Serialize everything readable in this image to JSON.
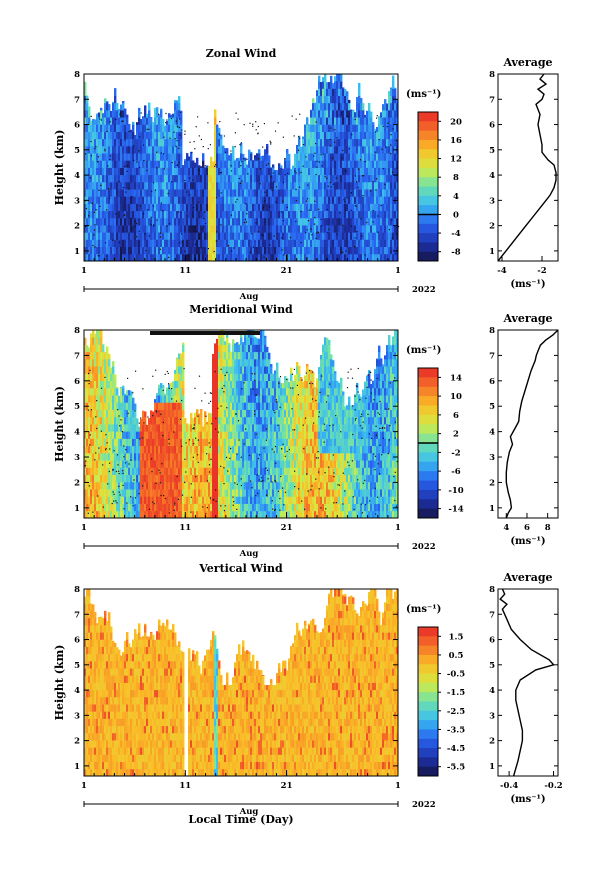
{
  "figure": {
    "xlabel": "Local Time (Day)",
    "month_label": "Aug",
    "year_label": "2022",
    "ylabel": "Height (km)",
    "avg_title": "Average",
    "cb_unit": "(ms⁻¹)",
    "avg_unit": "(ms⁻¹)"
  },
  "chart_data": [
    {
      "type": "heatmap",
      "title": "Zonal Wind",
      "x_ticks": [
        "1",
        "11",
        "21",
        "1"
      ],
      "x_range_days": [
        1,
        32
      ],
      "ylim": [
        0.6,
        8
      ],
      "y_ticks": [
        1,
        2,
        3,
        4,
        5,
        6,
        7,
        8
      ],
      "colorbar": {
        "ticks": [
          "20",
          "16",
          "12",
          "8",
          "4",
          "0",
          "-4",
          "-8"
        ],
        "range": [
          -10,
          22
        ],
        "contour_level": 0
      },
      "average_profile": {
        "title": "Average",
        "xlim": [
          -4.2,
          -1.2
        ],
        "x_ticks": [
          "-4",
          "-2"
        ],
        "height": [
          0.6,
          0.8,
          1.0,
          1.3,
          1.6,
          2.0,
          2.4,
          2.8,
          3.2,
          3.5,
          3.8,
          4.1,
          4.4,
          4.6,
          4.9,
          5.2,
          5.6,
          6.0,
          6.4,
          6.8,
          7.0,
          7.2,
          7.4,
          7.6,
          7.8,
          8.0
        ],
        "values": [
          -4.2,
          -4.0,
          -3.8,
          -3.5,
          -3.2,
          -2.8,
          -2.4,
          -2.0,
          -1.6,
          -1.4,
          -1.3,
          -1.3,
          -1.4,
          -1.7,
          -2.0,
          -2.0,
          -2.1,
          -2.2,
          -2.1,
          -2.3,
          -2.0,
          -1.9,
          -2.2,
          -1.8,
          -2.1,
          -1.9
        ]
      }
    },
    {
      "type": "heatmap",
      "title": "Meridional Wind",
      "x_ticks": [
        "1",
        "11",
        "21",
        "1"
      ],
      "x_range_days": [
        1,
        32
      ],
      "ylim": [
        0.6,
        8
      ],
      "y_ticks": [
        1,
        2,
        3,
        4,
        5,
        6,
        7,
        8
      ],
      "colorbar": {
        "ticks": [
          "14",
          "10",
          "6",
          "2",
          "-2",
          "-6",
          "-10",
          "-14"
        ],
        "range": [
          -16,
          16
        ],
        "contour_level": 0
      },
      "average_profile": {
        "title": "Average",
        "xlim": [
          3.2,
          9.0
        ],
        "x_ticks": [
          "4",
          "6",
          "8"
        ],
        "height": [
          0.6,
          0.8,
          1.0,
          1.3,
          1.6,
          2.0,
          2.4,
          2.8,
          3.2,
          3.5,
          3.8,
          4.1,
          4.4,
          4.8,
          5.2,
          5.6,
          6.0,
          6.4,
          6.8,
          7.0,
          7.2,
          7.4,
          7.6,
          7.8,
          8.0
        ],
        "values": [
          4.0,
          4.2,
          4.5,
          4.4,
          4.2,
          4.0,
          4.0,
          4.1,
          4.3,
          4.6,
          4.4,
          4.8,
          5.2,
          5.3,
          5.5,
          5.8,
          6.1,
          6.4,
          6.8,
          6.9,
          7.1,
          7.3,
          7.8,
          8.5,
          9.0
        ]
      }
    },
    {
      "type": "heatmap",
      "title": "Vertical Wind",
      "x_ticks": [
        "1",
        "11",
        "21",
        "1"
      ],
      "x_range_days": [
        1,
        32
      ],
      "ylim": [
        0.6,
        8
      ],
      "y_ticks": [
        1,
        2,
        3,
        4,
        5,
        6,
        7,
        8
      ],
      "colorbar": {
        "ticks": [
          "1.5",
          "0.5",
          "-0.5",
          "-1.5",
          "-2.5",
          "-3.5",
          "-4.5",
          "-5.5"
        ],
        "range": [
          -6,
          2
        ]
      },
      "average_profile": {
        "title": "Average",
        "xlim": [
          -0.45,
          -0.18
        ],
        "x_ticks": [
          "-0.4",
          "-0.2"
        ],
        "height": [
          0.6,
          0.9,
          1.2,
          1.6,
          2.0,
          2.4,
          2.8,
          3.2,
          3.6,
          4.0,
          4.4,
          4.8,
          5.0,
          5.2,
          5.6,
          6.0,
          6.4,
          6.8,
          7.0,
          7.2,
          7.4,
          7.6,
          7.8,
          8.0
        ],
        "values": [
          -0.38,
          -0.37,
          -0.36,
          -0.35,
          -0.34,
          -0.34,
          -0.35,
          -0.36,
          -0.37,
          -0.37,
          -0.35,
          -0.28,
          -0.2,
          -0.22,
          -0.3,
          -0.35,
          -0.39,
          -0.41,
          -0.42,
          -0.43,
          -0.41,
          -0.44,
          -0.42,
          -0.43
        ]
      }
    }
  ]
}
